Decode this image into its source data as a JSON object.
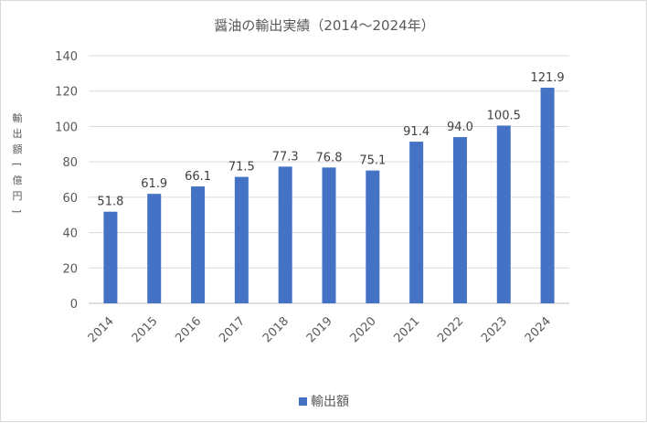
{
  "chart_data": {
    "type": "bar",
    "title": "醤油の輸出実績（2014～2024年）",
    "ylabel": "輸出額[億円]",
    "xlabel": "",
    "categories": [
      "2014",
      "2015",
      "2016",
      "2017",
      "2018",
      "2019",
      "2020",
      "2021",
      "2022",
      "2023",
      "2024"
    ],
    "series": [
      {
        "name": "輸出額",
        "values": [
          51.8,
          61.9,
          66.1,
          71.5,
          77.3,
          76.8,
          75.1,
          91.4,
          94.0,
          100.5,
          121.9
        ]
      }
    ],
    "value_labels": [
      "51.8",
      "61.9",
      "66.1",
      "71.5",
      "77.3",
      "76.8",
      "75.1",
      "91.4",
      "94.0",
      "100.5",
      "121.9"
    ],
    "ylim": [
      0,
      140
    ],
    "yticks": [
      0,
      20,
      40,
      60,
      80,
      100,
      120,
      140
    ],
    "grid": true,
    "legend_position": "bottom",
    "bar_color": "#4472c4"
  }
}
